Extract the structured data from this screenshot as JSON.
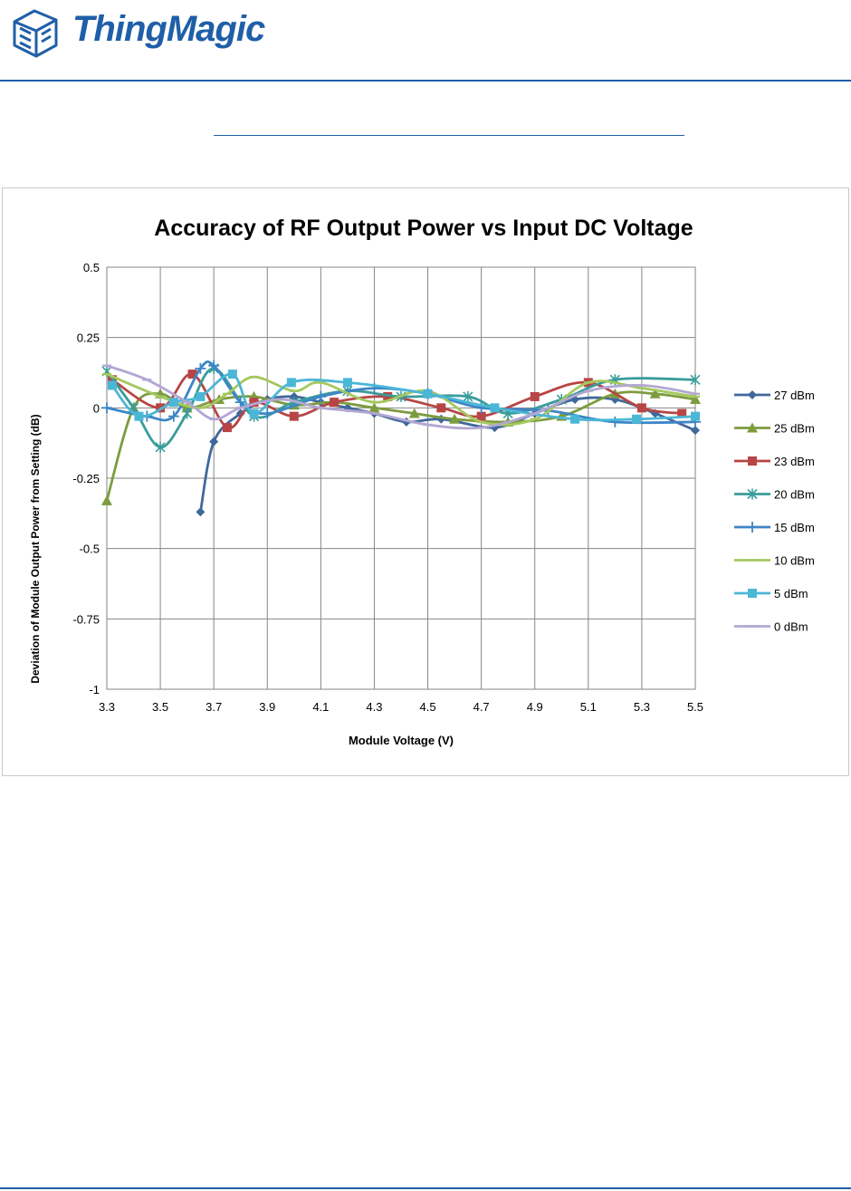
{
  "header": {
    "logo_text": "ThingMagic",
    "brand_color": "#1f5fa8"
  },
  "chart_data": {
    "type": "line",
    "title": "Accuracy of RF Output Power vs Input DC Voltage",
    "xlabel": "Module Voltage (V)",
    "ylabel": "Deviation of Module Output Power from Setting (dB)",
    "xlim": [
      3.3,
      5.5
    ],
    "ylim": [
      -1,
      0.5
    ],
    "xticks": [
      "3.3",
      "3.5",
      "3.7",
      "3.9",
      "4.1",
      "4.3",
      "4.5",
      "4.7",
      "4.9",
      "5.1",
      "5.3",
      "5.5"
    ],
    "yticks": [
      "0.5",
      "0.25",
      "0",
      "-0.25",
      "-0.5",
      "-0.75",
      "-1"
    ],
    "grid": true,
    "legend": "right",
    "series": [
      {
        "name": "27 dBm",
        "color": "#41689c",
        "marker": "diamond",
        "x": [
          3.65,
          3.7,
          3.8,
          3.9,
          4.0,
          4.1,
          4.2,
          4.3,
          4.42,
          4.55,
          4.75,
          4.9,
          5.05,
          5.2,
          5.35,
          5.5
        ],
        "y": [
          -0.37,
          -0.12,
          -0.02,
          0.03,
          0.04,
          0.02,
          0.0,
          -0.02,
          -0.05,
          -0.04,
          -0.07,
          -0.02,
          0.03,
          0.03,
          -0.02,
          -0.08
        ]
      },
      {
        "name": "25 dBm",
        "color": "#7d9c3f",
        "marker": "triangle",
        "x": [
          3.3,
          3.4,
          3.5,
          3.6,
          3.72,
          3.85,
          4.0,
          4.15,
          4.3,
          4.45,
          4.6,
          4.8,
          5.0,
          5.2,
          5.35,
          5.5
        ],
        "y": [
          -0.33,
          0.0,
          0.05,
          0.0,
          0.03,
          0.04,
          0.01,
          0.02,
          0.0,
          -0.02,
          -0.04,
          -0.05,
          -0.03,
          0.05,
          0.05,
          0.03
        ]
      },
      {
        "name": "23 dBm",
        "color": "#b84545",
        "marker": "square",
        "x": [
          3.32,
          3.5,
          3.62,
          3.75,
          3.85,
          4.0,
          4.15,
          4.35,
          4.55,
          4.7,
          4.9,
          5.1,
          5.3,
          5.45
        ],
        "y": [
          0.1,
          0.0,
          0.12,
          -0.07,
          0.02,
          -0.03,
          0.02,
          0.04,
          0.0,
          -0.03,
          0.04,
          0.09,
          0.0,
          -0.02
        ]
      },
      {
        "name": "20 dBm",
        "color": "#3a9c9a",
        "marker": "star",
        "x": [
          3.3,
          3.4,
          3.5,
          3.6,
          3.7,
          3.85,
          4.0,
          4.2,
          4.4,
          4.65,
          4.8,
          5.0,
          5.2,
          5.5
        ],
        "y": [
          0.13,
          0.0,
          -0.14,
          -0.02,
          0.14,
          -0.03,
          0.02,
          0.06,
          0.04,
          0.04,
          -0.02,
          0.03,
          0.1,
          0.1
        ]
      },
      {
        "name": "15 dBm",
        "color": "#3d86c6",
        "marker": "cross",
        "x": [
          3.3,
          3.45,
          3.55,
          3.65,
          3.7,
          3.8,
          3.9,
          4.1,
          4.3,
          4.5,
          4.7,
          4.95,
          5.2,
          5.5
        ],
        "y": [
          0.0,
          -0.03,
          -0.03,
          0.14,
          0.15,
          0.02,
          -0.02,
          0.04,
          0.07,
          0.05,
          0.0,
          -0.01,
          -0.05,
          -0.05
        ]
      },
      {
        "name": "10 dBm",
        "color": "#a5c85f",
        "marker": "dash",
        "x": [
          3.3,
          3.5,
          3.65,
          3.75,
          3.85,
          4.0,
          4.1,
          4.3,
          4.5,
          4.7,
          4.9,
          5.1,
          5.3,
          5.5
        ],
        "y": [
          0.12,
          0.04,
          0.0,
          0.05,
          0.11,
          0.06,
          0.09,
          0.02,
          0.06,
          -0.05,
          -0.04,
          0.09,
          0.07,
          0.04
        ]
      },
      {
        "name": "5 dBm",
        "color": "#4bb7d6",
        "marker": "square",
        "x": [
          3.32,
          3.42,
          3.55,
          3.65,
          3.77,
          3.85,
          3.99,
          4.2,
          4.5,
          4.75,
          5.05,
          5.28,
          5.5
        ],
        "y": [
          0.08,
          -0.03,
          0.02,
          0.04,
          0.12,
          -0.02,
          0.09,
          0.09,
          0.05,
          0.0,
          -0.04,
          -0.04,
          -0.03
        ]
      },
      {
        "name": "0 dBm",
        "color": "#b3a7d3",
        "marker": "dash",
        "x": [
          3.3,
          3.45,
          3.6,
          3.7,
          3.8,
          3.95,
          4.1,
          4.3,
          4.5,
          4.7,
          4.9,
          5.1,
          5.3,
          5.5
        ],
        "y": [
          0.15,
          0.1,
          0.02,
          -0.04,
          0.0,
          0.03,
          0.0,
          -0.02,
          -0.06,
          -0.07,
          -0.02,
          0.06,
          0.08,
          0.05
        ]
      }
    ]
  }
}
